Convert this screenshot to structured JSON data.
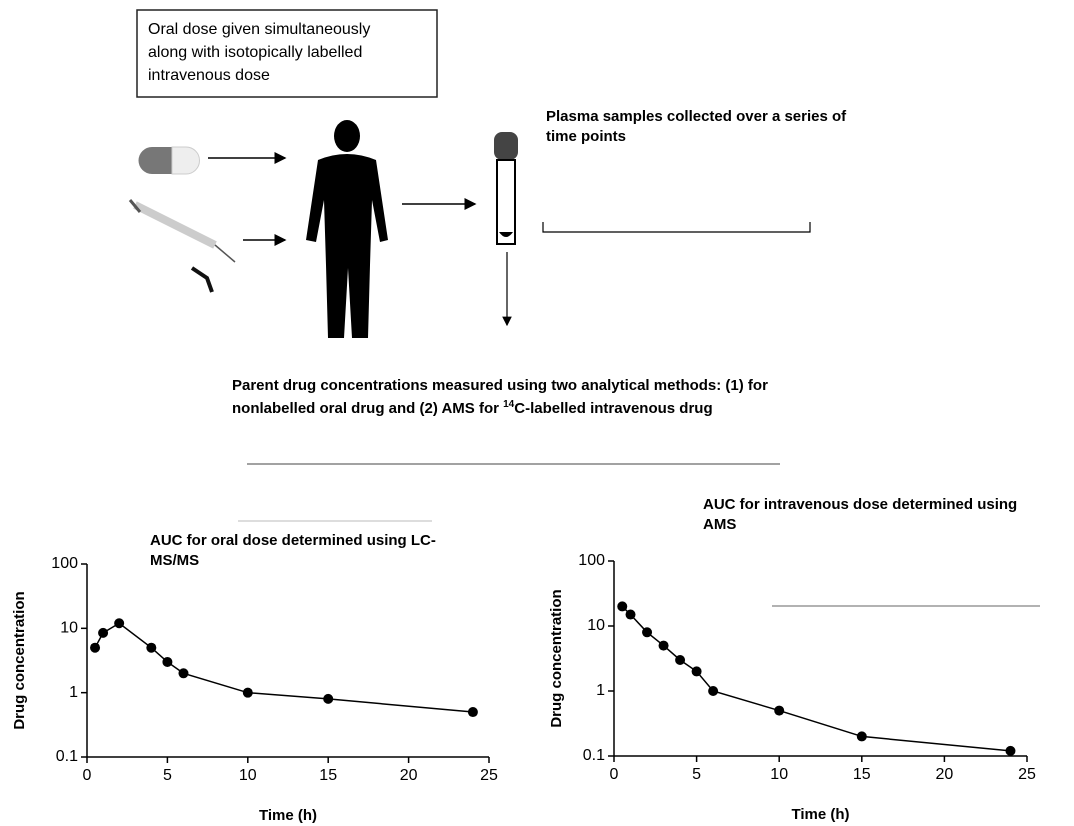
{
  "box_text": [
    "Oral dose given simultaneously",
    "along with isotopically labelled",
    "intravenous dose"
  ],
  "plasma_text": [
    "Plasma samples collected over a series of",
    "time points"
  ],
  "methods_text": {
    "line1": "Parent drug concentrations measured using two analytical methods: (1) for",
    "line2_start": "nonlabelled oral drug and (2) AMS for ",
    "superscript": "14",
    "line2_end": "C-labelled intravenous drug"
  },
  "chart_data": [
    {
      "type": "line",
      "title": [
        "AUC for oral dose determined using LC-",
        "MS/MS"
      ],
      "xlabel": "Time (h)",
      "ylabel": "Drug concentration",
      "x": [
        0.5,
        1,
        2,
        4,
        5,
        6,
        10,
        15,
        24
      ],
      "values": [
        5,
        8.5,
        12,
        5,
        3,
        2,
        1,
        0.8,
        0.5
      ],
      "color": "#000000",
      "xlim": [
        0,
        25
      ],
      "xticks": [
        0,
        5,
        10,
        15,
        20,
        25
      ],
      "ylim": [
        0.1,
        100
      ],
      "yticks": [
        0.1,
        1,
        10,
        100
      ],
      "log_y": true
    },
    {
      "type": "line",
      "title": [
        "AUC for intravenous dose determined using",
        "AMS"
      ],
      "xlabel": "Time (h)",
      "ylabel": "Drug concentration",
      "x": [
        0.5,
        1,
        2,
        3,
        4,
        5,
        6,
        10,
        15,
        24
      ],
      "values": [
        20,
        15,
        8,
        5,
        3,
        2,
        1,
        0.5,
        0.2,
        0.12
      ],
      "color": "#000000",
      "xlim": [
        0,
        25
      ],
      "xticks": [
        0,
        5,
        10,
        15,
        20,
        25
      ],
      "ylim": [
        0.1,
        100
      ],
      "yticks": [
        0.1,
        1,
        10,
        100
      ],
      "log_y": true
    }
  ]
}
